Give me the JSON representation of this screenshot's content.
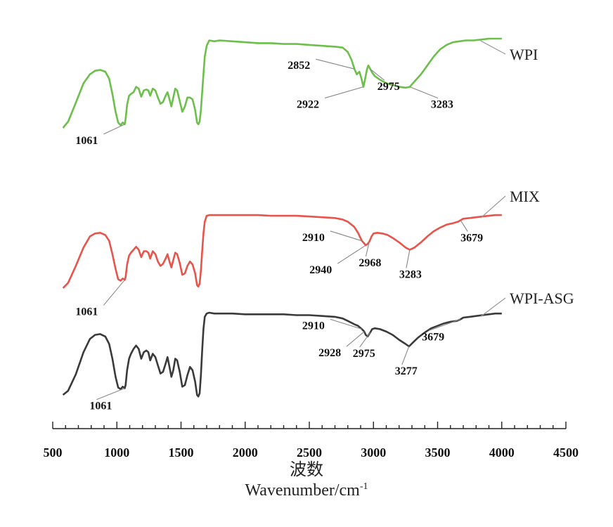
{
  "chart_data": {
    "type": "line",
    "xlabel_cn": "波数",
    "xlabel_en": "Wavenumber/cm",
    "xlabel_en_sup": "-1",
    "xlim": [
      500,
      4500
    ],
    "xticks": [
      "500",
      "1000",
      "1500",
      "2000",
      "2500",
      "3000",
      "3500",
      "4000",
      "4500"
    ],
    "grid": false,
    "series": [
      {
        "name": "WPI",
        "color": "#6cc04a",
        "x": [
          580,
          620,
          680,
          740,
          790,
          830,
          870,
          910,
          940,
          965,
          990,
          1010,
          1030,
          1045,
          1055,
          1061,
          1068,
          1080,
          1095,
          1110,
          1130,
          1150,
          1170,
          1190,
          1210,
          1230,
          1245,
          1260,
          1280,
          1300,
          1320,
          1340,
          1360,
          1380,
          1395,
          1410,
          1425,
          1440,
          1455,
          1470,
          1490,
          1510,
          1530,
          1550,
          1570,
          1590,
          1610,
          1625,
          1635,
          1645,
          1655,
          1665,
          1675,
          1685,
          1700,
          1720,
          1760,
          1800,
          1900,
          2000,
          2100,
          2200,
          2300,
          2400,
          2500,
          2600,
          2700,
          2760,
          2800,
          2830,
          2852,
          2870,
          2890,
          2905,
          2922,
          2935,
          2950,
          2960,
          2975,
          2990,
          3010,
          3050,
          3100,
          3150,
          3200,
          3250,
          3283,
          3320,
          3370,
          3420,
          3470,
          3520,
          3570,
          3620,
          3670,
          3720,
          3780,
          3840,
          3900,
          3950,
          4000
        ],
        "y": [
          0.0,
          0.07,
          0.28,
          0.5,
          0.6,
          0.64,
          0.65,
          0.63,
          0.55,
          0.38,
          0.18,
          0.06,
          0.03,
          0.06,
          0.05,
          0.04,
          0.1,
          0.26,
          0.36,
          0.38,
          0.4,
          0.46,
          0.44,
          0.35,
          0.42,
          0.43,
          0.42,
          0.36,
          0.44,
          0.42,
          0.34,
          0.27,
          0.29,
          0.36,
          0.4,
          0.32,
          0.24,
          0.34,
          0.44,
          0.42,
          0.3,
          0.18,
          0.24,
          0.34,
          0.34,
          0.32,
          0.2,
          0.06,
          0.04,
          0.07,
          0.2,
          0.4,
          0.6,
          0.8,
          0.92,
          0.98,
          0.97,
          0.98,
          0.97,
          0.96,
          0.95,
          0.95,
          0.94,
          0.94,
          0.93,
          0.92,
          0.91,
          0.9,
          0.85,
          0.76,
          0.66,
          0.6,
          0.63,
          0.56,
          0.46,
          0.55,
          0.66,
          0.7,
          0.66,
          0.62,
          0.58,
          0.54,
          0.5,
          0.48,
          0.46,
          0.45,
          0.46,
          0.52,
          0.6,
          0.7,
          0.8,
          0.88,
          0.93,
          0.96,
          0.97,
          0.98,
          0.98,
          0.99,
          1.0,
          1.0,
          1.0
        ]
      },
      {
        "name": "MIX",
        "color": "#e8544b",
        "x": [
          580,
          620,
          680,
          740,
          790,
          830,
          870,
          910,
          940,
          965,
          990,
          1010,
          1030,
          1045,
          1055,
          1061,
          1068,
          1080,
          1095,
          1110,
          1130,
          1150,
          1170,
          1190,
          1210,
          1230,
          1245,
          1260,
          1280,
          1300,
          1320,
          1340,
          1360,
          1380,
          1395,
          1410,
          1425,
          1440,
          1455,
          1470,
          1490,
          1510,
          1530,
          1550,
          1570,
          1590,
          1610,
          1625,
          1635,
          1645,
          1655,
          1665,
          1675,
          1685,
          1700,
          1720,
          1760,
          1800,
          1900,
          2000,
          2100,
          2200,
          2300,
          2400,
          2500,
          2600,
          2700,
          2760,
          2800,
          2850,
          2880,
          2910,
          2925,
          2940,
          2955,
          2968,
          2985,
          3000,
          3030,
          3070,
          3110,
          3150,
          3200,
          3250,
          3283,
          3320,
          3370,
          3420,
          3470,
          3520,
          3570,
          3620,
          3660,
          3679,
          3700,
          3750,
          3800,
          3850,
          3900,
          3950,
          4000
        ],
        "y": [
          0.0,
          0.07,
          0.3,
          0.55,
          0.7,
          0.74,
          0.75,
          0.72,
          0.64,
          0.46,
          0.26,
          0.12,
          0.1,
          0.13,
          0.12,
          0.11,
          0.15,
          0.32,
          0.44,
          0.48,
          0.52,
          0.56,
          0.52,
          0.42,
          0.5,
          0.5,
          0.48,
          0.4,
          0.5,
          0.46,
          0.36,
          0.3,
          0.33,
          0.4,
          0.46,
          0.36,
          0.28,
          0.38,
          0.48,
          0.46,
          0.34,
          0.18,
          0.2,
          0.3,
          0.36,
          0.32,
          0.2,
          0.04,
          0.02,
          0.06,
          0.24,
          0.5,
          0.74,
          0.9,
          0.98,
          0.99,
          0.99,
          0.99,
          0.99,
          0.99,
          0.99,
          0.98,
          0.98,
          0.98,
          0.97,
          0.96,
          0.95,
          0.93,
          0.9,
          0.83,
          0.75,
          0.64,
          0.61,
          0.58,
          0.6,
          0.63,
          0.7,
          0.74,
          0.75,
          0.74,
          0.72,
          0.68,
          0.62,
          0.55,
          0.52,
          0.55,
          0.62,
          0.7,
          0.77,
          0.82,
          0.86,
          0.88,
          0.9,
          0.92,
          0.94,
          0.95,
          0.96,
          0.97,
          0.98,
          0.99,
          0.99
        ]
      },
      {
        "name": "WPI-ASG",
        "color": "#3a3a3a",
        "x": [
          580,
          620,
          680,
          740,
          790,
          830,
          870,
          910,
          940,
          965,
          990,
          1010,
          1030,
          1045,
          1055,
          1061,
          1068,
          1080,
          1095,
          1110,
          1130,
          1150,
          1170,
          1190,
          1210,
          1230,
          1245,
          1260,
          1280,
          1300,
          1320,
          1340,
          1360,
          1380,
          1395,
          1410,
          1425,
          1440,
          1455,
          1470,
          1490,
          1510,
          1530,
          1550,
          1570,
          1590,
          1610,
          1625,
          1635,
          1645,
          1655,
          1665,
          1675,
          1685,
          1700,
          1720,
          1760,
          1800,
          1900,
          2000,
          2100,
          2200,
          2300,
          2400,
          2500,
          2600,
          2700,
          2760,
          2800,
          2850,
          2880,
          2910,
          2928,
          2940,
          2955,
          2975,
          2990,
          3010,
          3050,
          3100,
          3150,
          3200,
          3250,
          3277,
          3310,
          3350,
          3400,
          3450,
          3500,
          3550,
          3600,
          3650,
          3679,
          3700,
          3750,
          3800,
          3850,
          3900,
          3950,
          4000
        ],
        "y": [
          0.0,
          0.05,
          0.25,
          0.52,
          0.68,
          0.73,
          0.74,
          0.71,
          0.62,
          0.44,
          0.22,
          0.09,
          0.07,
          0.1,
          0.09,
          0.08,
          0.12,
          0.3,
          0.44,
          0.5,
          0.56,
          0.6,
          0.56,
          0.44,
          0.52,
          0.54,
          0.52,
          0.42,
          0.5,
          0.46,
          0.36,
          0.26,
          0.28,
          0.38,
          0.46,
          0.34,
          0.22,
          0.3,
          0.44,
          0.42,
          0.28,
          0.1,
          0.12,
          0.24,
          0.34,
          0.3,
          0.16,
          0.0,
          -0.02,
          0.02,
          0.24,
          0.54,
          0.8,
          0.95,
          0.99,
          1.0,
          0.99,
          0.99,
          0.99,
          0.98,
          0.98,
          0.98,
          0.98,
          0.97,
          0.97,
          0.96,
          0.95,
          0.93,
          0.9,
          0.86,
          0.84,
          0.8,
          0.77,
          0.73,
          0.71,
          0.76,
          0.8,
          0.81,
          0.8,
          0.77,
          0.73,
          0.67,
          0.62,
          0.59,
          0.64,
          0.7,
          0.76,
          0.81,
          0.84,
          0.87,
          0.89,
          0.9,
          0.92,
          0.94,
          0.95,
          0.96,
          0.97,
          0.98,
          0.99,
          0.99
        ]
      }
    ],
    "annotations": [
      {
        "series": 0,
        "label": "1061",
        "x": 1061
      },
      {
        "series": 0,
        "label": "2852",
        "x": 2852
      },
      {
        "series": 0,
        "label": "2922",
        "x": 2922
      },
      {
        "series": 0,
        "label": "2975",
        "x": 2975
      },
      {
        "series": 0,
        "label": "3283",
        "x": 3283
      },
      {
        "series": 1,
        "label": "1061",
        "x": 1061
      },
      {
        "series": 1,
        "label": "2910",
        "x": 2910
      },
      {
        "series": 1,
        "label": "2940",
        "x": 2940
      },
      {
        "series": 1,
        "label": "2968",
        "x": 2968
      },
      {
        "series": 1,
        "label": "3283",
        "x": 3283
      },
      {
        "series": 1,
        "label": "3679",
        "x": 3679
      },
      {
        "series": 2,
        "label": "1061",
        "x": 1061
      },
      {
        "series": 2,
        "label": "2910",
        "x": 2910
      },
      {
        "series": 2,
        "label": "2928",
        "x": 2928
      },
      {
        "series": 2,
        "label": "2975",
        "x": 2975
      },
      {
        "series": 2,
        "label": "3277",
        "x": 3277
      },
      {
        "series": 2,
        "label": "3679",
        "x": 3679
      }
    ]
  }
}
